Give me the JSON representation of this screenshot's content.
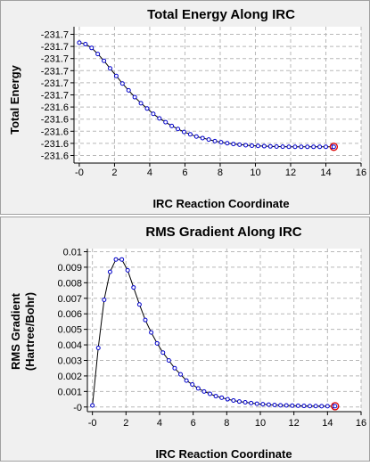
{
  "chart_data": [
    {
      "type": "line",
      "title": "Total Energy Along IRC",
      "xlabel": "IRC Reaction Coordinate",
      "ylabel": "Total Energy",
      "xlim": [
        -0.3,
        16
      ],
      "ylim": [
        -231.74,
        -231.56
      ],
      "grid": true,
      "x_ticks": [
        "-0",
        "2",
        "4",
        "6",
        "8",
        "10",
        "12",
        "14",
        "16"
      ],
      "y_ticks": [
        "-231.6",
        "-231.6",
        "-231.6",
        "-231.6",
        "-231.6",
        "-231.7",
        "-231.7",
        "-231.7",
        "-231.7",
        "-231.7",
        "-231.7"
      ],
      "highlight": {
        "x": 14.45,
        "y": -231.7186
      },
      "series": [
        {
          "x": [
            0,
            0.35,
            0.7,
            1.05,
            1.4,
            1.75,
            2.1,
            2.45,
            2.8,
            3.15,
            3.5,
            3.85,
            4.2,
            4.55,
            4.9,
            5.25,
            5.6,
            5.95,
            6.3,
            6.65,
            7.0,
            7.35,
            7.7,
            8.05,
            8.4,
            8.75,
            9.1,
            9.45,
            9.8,
            10.15,
            10.5,
            10.85,
            11.2,
            11.55,
            11.9,
            12.25,
            12.6,
            12.95,
            13.3,
            13.65,
            14.0,
            14.35
          ],
          "y": [
            -231.581,
            -231.583,
            -231.588,
            -231.596,
            -231.605,
            -231.615,
            -231.625,
            -231.635,
            -231.644,
            -231.653,
            -231.661,
            -231.668,
            -231.675,
            -231.681,
            -231.686,
            -231.691,
            -231.695,
            -231.699,
            -231.702,
            -231.705,
            -231.707,
            -231.709,
            -231.711,
            -231.7125,
            -231.7138,
            -231.7148,
            -231.7157,
            -231.7164,
            -231.717,
            -231.7174,
            -231.7177,
            -231.718,
            -231.7182,
            -231.7184,
            -231.7185,
            -231.7186,
            -231.7186,
            -231.7186,
            -231.7186,
            -231.7186,
            -231.7186,
            -231.7186
          ]
        }
      ]
    },
    {
      "type": "line",
      "title": "RMS Gradient Along IRC",
      "xlabel": "IRC Reaction Coordinate",
      "ylabel": "RMS Gradient\n(Hartree/Bohr)",
      "xlim": [
        -0.3,
        16
      ],
      "ylim": [
        -0.0003,
        0.0102
      ],
      "grid": true,
      "x_ticks": [
        "-0",
        "2",
        "4",
        "6",
        "8",
        "10",
        "12",
        "14",
        "16"
      ],
      "y_ticks": [
        "-0",
        "0.001",
        "0.002",
        "0.003",
        "0.004",
        "0.005",
        "0.006",
        "0.007",
        "0.008",
        "0.009",
        "0.01"
      ],
      "highlight": {
        "x": 14.45,
        "y": 5e-05
      },
      "series": [
        {
          "x": [
            0,
            0.35,
            0.7,
            1.05,
            1.4,
            1.75,
            2.1,
            2.45,
            2.8,
            3.15,
            3.5,
            3.85,
            4.2,
            4.55,
            4.9,
            5.25,
            5.6,
            5.95,
            6.3,
            6.65,
            7.0,
            7.35,
            7.7,
            8.05,
            8.4,
            8.75,
            9.1,
            9.45,
            9.8,
            10.15,
            10.5,
            10.85,
            11.2,
            11.55,
            11.9,
            12.25,
            12.6,
            12.95,
            13.3,
            13.65,
            14.0,
            14.35
          ],
          "y": [
            0.0001,
            0.0038,
            0.0069,
            0.0087,
            0.0095,
            0.0095,
            0.0088,
            0.0077,
            0.0066,
            0.0056,
            0.0048,
            0.0041,
            0.0035,
            0.003,
            0.0025,
            0.0021,
            0.0017,
            0.00145,
            0.0012,
            0.001,
            0.00085,
            0.0007,
            0.0006,
            0.0005,
            0.00042,
            0.00035,
            0.0003,
            0.00025,
            0.00021,
            0.00018,
            0.00015,
            0.00013,
            0.00011,
            0.0001,
            9e-05,
            8e-05,
            7e-05,
            6e-05,
            6e-05,
            5e-05,
            5e-05,
            5e-05
          ]
        }
      ]
    }
  ]
}
